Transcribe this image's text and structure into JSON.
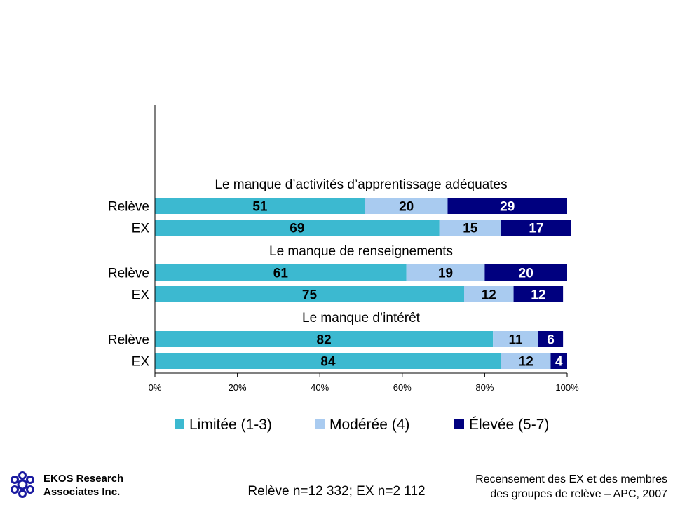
{
  "chart_data": {
    "type": "bar",
    "orientation": "horizontal",
    "stacked": true,
    "title": "",
    "xlabel": "",
    "ylabel": "",
    "xlim": [
      0,
      100
    ],
    "x_ticks": [
      "0%",
      "20%",
      "40%",
      "60%",
      "80%",
      "100%"
    ],
    "groups": [
      {
        "title": "Le manque d’activités d’apprentissage adéquates",
        "rows": [
          {
            "label": "Relève",
            "values": [
              51,
              20,
              29
            ]
          },
          {
            "label": "EX",
            "values": [
              69,
              15,
              17
            ]
          }
        ]
      },
      {
        "title": "Le manque de renseignements",
        "rows": [
          {
            "label": "Relève",
            "values": [
              61,
              19,
              20
            ]
          },
          {
            "label": "EX",
            "values": [
              75,
              12,
              12
            ]
          }
        ]
      },
      {
        "title": "Le manque d’intérêt",
        "rows": [
          {
            "label": "Relève",
            "values": [
              82,
              11,
              6
            ]
          },
          {
            "label": "EX",
            "values": [
              84,
              12,
              4
            ]
          }
        ]
      }
    ],
    "series": [
      {
        "name": "Limitée (1-3)",
        "color": "#3CB9D0",
        "label_color": "#000000"
      },
      {
        "name": "Modérée (4)",
        "color": "#A9CBF0",
        "label_color": "#000000"
      },
      {
        "name": "Élevée (5-7)",
        "color": "#00007F",
        "label_color": "#FFFFFF"
      }
    ],
    "legend": "bottom"
  },
  "footer": {
    "company": [
      "EKOS Research",
      "Associates Inc."
    ],
    "sample": "Relève n=12 332; EX n=2 112",
    "source": [
      "Recensement des EX et des membres",
      "des groupes de relève – APC, 2007"
    ]
  },
  "logo_icon": "ekos-logo-icon"
}
